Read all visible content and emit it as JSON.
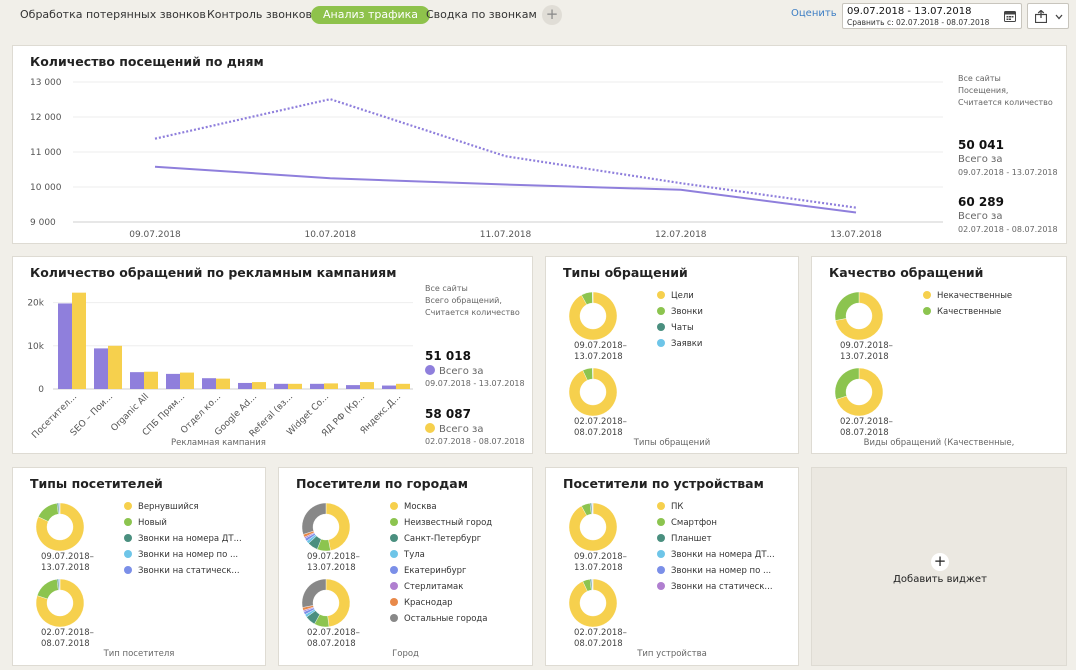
{
  "tabs": [
    {
      "label": "Обработка потерянных звонков"
    },
    {
      "label": "Контроль звонков"
    },
    {
      "label": "Анализ трафика"
    },
    {
      "label": "Сводка по звонкам"
    }
  ],
  "header": {
    "rate_label": "Оценить",
    "date_range": "09.07.2018 - 13.07.2018",
    "compare_range": "Сравнить с: 02.07.2018 - 08.07.2018"
  },
  "colors": {
    "purple": "#8f7fdc",
    "yellow": "#f6d04d",
    "green": "#8cc44f",
    "teal": "#4a8f7f",
    "sky": "#6ec5e8",
    "blue": "#7b8fe8",
    "lilac": "#b07fd0",
    "orange": "#e8894a",
    "gray": "#888888"
  },
  "visits": {
    "title": "Количество посещений по дням",
    "side_note": [
      "Все сайты",
      "Посещения,",
      "Считается количество"
    ],
    "total_current": "50 041",
    "total_current_label": "Всего за",
    "total_current_period": "09.07.2018 - 13.07.2018",
    "total_prev": "60 289",
    "total_prev_label": "Всего за",
    "total_prev_period": "02.07.2018 - 08.07.2018",
    "chart_data": {
      "type": "line",
      "categories": [
        "09.07.2018",
        "10.07.2018",
        "11.07.2018",
        "12.07.2018",
        "13.07.2018"
      ],
      "yticks": [
        "13 000",
        "12 000",
        "11 000",
        "10 000",
        "9 000"
      ],
      "ylim": [
        9000,
        13000
      ],
      "series": [
        {
          "style": "solid",
          "values": [
            10580,
            10250,
            10070,
            9920,
            9270
          ]
        },
        {
          "style": "dotted",
          "values": [
            11380,
            12510,
            10880,
            10110,
            9410
          ]
        }
      ]
    }
  },
  "campaigns": {
    "title": "Количество обращений по рекламным кампаниям",
    "side_note": [
      "Все сайты",
      "Всего обращений,",
      "Считается количество"
    ],
    "total_current": "51 018",
    "total_current_label": "Всего за",
    "total_current_period": "09.07.2018 - 13.07.2018",
    "total_prev": "58 087",
    "total_prev_label": "Всего за",
    "total_prev_period": "02.07.2018 - 08.07.2018",
    "xlabel": "Рекламная кампания",
    "chart_data": {
      "type": "bar",
      "categories": [
        "Посетител...",
        "SEO – Пои...",
        "Organic All",
        "СПБ Прям...",
        "Отдел ко...",
        "Google Ad...",
        "Referal (вз...",
        "Widget Co...",
        "ЯД РФ (Кр...",
        "Яндекс.Д..."
      ],
      "yticks": [
        "20k",
        "10k",
        "0"
      ],
      "ylim": [
        0,
        25000
      ],
      "series": [
        {
          "values": [
            19800,
            9400,
            3900,
            3500,
            2500,
            1400,
            1200,
            1200,
            900,
            800
          ]
        },
        {
          "values": [
            22300,
            10000,
            4000,
            3800,
            2400,
            1600,
            1200,
            1300,
            1600,
            1200
          ]
        }
      ]
    }
  },
  "appeal_types": {
    "title": "Типы обращений",
    "period_current": [
      "09.07.2018–",
      "13.07.2018"
    ],
    "period_prev": [
      "02.07.2018–",
      "08.07.2018"
    ],
    "caption": "Типы обращений",
    "legend": [
      {
        "label": "Цели",
        "color": "#f6d04d"
      },
      {
        "label": "Звонки",
        "color": "#8cc44f"
      },
      {
        "label": "Чаты",
        "color": "#4a8f7f"
      },
      {
        "label": "Заявки",
        "color": "#6ec5e8"
      }
    ],
    "chart_data": [
      {
        "type": "pie",
        "labels": [
          "Цели",
          "Звонки",
          "Чаты",
          "Заявки"
        ],
        "values": [
          92,
          7.5,
          0.3,
          0.2
        ]
      },
      {
        "type": "pie",
        "labels": [
          "Цели",
          "Звонки",
          "Чаты",
          "Заявки"
        ],
        "values": [
          93,
          6.6,
          0.2,
          0.2
        ]
      }
    ]
  },
  "appeal_quality": {
    "title": "Качество обращений",
    "period_current": [
      "09.07.2018–",
      "13.07.2018"
    ],
    "period_prev": [
      "02.07.2018–",
      "08.07.2018"
    ],
    "caption": "Виды обращений (Качественные,",
    "legend": [
      {
        "label": "Некачественные",
        "color": "#f6d04d"
      },
      {
        "label": "Качественные",
        "color": "#8cc44f"
      }
    ],
    "chart_data": [
      {
        "type": "pie",
        "labels": [
          "Некачественные",
          "Качественные"
        ],
        "values": [
          72,
          28
        ]
      },
      {
        "type": "pie",
        "labels": [
          "Некачественные",
          "Качественные"
        ],
        "values": [
          70,
          30
        ]
      }
    ]
  },
  "visitor_types": {
    "title": "Типы посетителей",
    "period_current": [
      "09.07.2018–",
      "13.07.2018"
    ],
    "period_prev": [
      "02.07.2018–",
      "08.07.2018"
    ],
    "caption": "Тип посетителя",
    "legend": [
      {
        "label": "Вернувшийся",
        "color": "#f6d04d"
      },
      {
        "label": "Новый",
        "color": "#8cc44f"
      },
      {
        "label": "Звонки на номера ДТ...",
        "color": "#4a8f7f"
      },
      {
        "label": "Звонки на номер по ...",
        "color": "#6ec5e8"
      },
      {
        "label": "Звонки на статическ...",
        "color": "#7b8fe8"
      }
    ],
    "chart_data": [
      {
        "type": "pie",
        "labels": [
          "Вернувшийся",
          "Новый",
          "Звонки на номера ДТ...",
          "Звонки на номер по ...",
          "Звонки на статическ..."
        ],
        "values": [
          82,
          16,
          1,
          0.5,
          0.5
        ]
      },
      {
        "type": "pie",
        "labels": [
          "Вернувшийся",
          "Новый",
          "Звонки на номера ДТ...",
          "Звонки на номер по ...",
          "Звонки на статическ..."
        ],
        "values": [
          80,
          18,
          1,
          0.5,
          0.5
        ]
      }
    ]
  },
  "city_visitors": {
    "title": "Посетители по городам",
    "period_current": [
      "09.07.2018–",
      "13.07.2018"
    ],
    "period_prev": [
      "02.07.2018–",
      "08.07.2018"
    ],
    "caption": "Город",
    "legend": [
      {
        "label": "Москва",
        "color": "#f6d04d"
      },
      {
        "label": "Неизвестный город",
        "color": "#8cc44f"
      },
      {
        "label": "Санкт-Петербург",
        "color": "#4a8f7f"
      },
      {
        "label": "Тула",
        "color": "#6ec5e8"
      },
      {
        "label": "Екатеринбург",
        "color": "#7b8fe8"
      },
      {
        "label": "Стерлитамак",
        "color": "#b07fd0"
      },
      {
        "label": "Краснодар",
        "color": "#e8894a"
      },
      {
        "label": "Остальные города",
        "color": "#888888"
      }
    ],
    "chart_data": [
      {
        "type": "pie",
        "labels": [
          "Москва",
          "Неизвестный город",
          "Санкт-Петербург",
          "Тула",
          "Екатеринбург",
          "Стерлитамак",
          "Краснодар",
          "Остальные города"
        ],
        "values": [
          47,
          9,
          7,
          2,
          2,
          1,
          2,
          30
        ]
      },
      {
        "type": "pie",
        "labels": [
          "Москва",
          "Неизвестный город",
          "Санкт-Петербург",
          "Тула",
          "Екатеринбург",
          "Стерлитамак",
          "Краснодар",
          "Остальные города"
        ],
        "values": [
          48,
          10,
          7,
          2,
          2,
          1,
          2,
          28
        ]
      }
    ]
  },
  "device_visitors": {
    "title": "Посетители по устройствам",
    "period_current": [
      "09.07.2018–",
      "13.07.2018"
    ],
    "period_prev": [
      "02.07.2018–",
      "08.07.2018"
    ],
    "caption": "Тип устройства",
    "legend": [
      {
        "label": "ПК",
        "color": "#f6d04d"
      },
      {
        "label": "Смартфон",
        "color": "#8cc44f"
      },
      {
        "label": "Планшет",
        "color": "#4a8f7f"
      },
      {
        "label": "Звонки на номера ДТ...",
        "color": "#6ec5e8"
      },
      {
        "label": "Звонки на номер по ...",
        "color": "#7b8fe8"
      },
      {
        "label": "Звонки на статическ...",
        "color": "#b07fd0"
      }
    ],
    "chart_data": [
      {
        "type": "pie",
        "labels": [
          "ПК",
          "Смартфон",
          "Планшет",
          "Звонки на номера ДТ...",
          "Звонки на номер по ...",
          "Звонки на статическ..."
        ],
        "values": [
          92,
          6,
          1,
          0.4,
          0.3,
          0.3
        ]
      },
      {
        "type": "pie",
        "labels": [
          "ПК",
          "Смартфон",
          "Планшет",
          "Звонки на номера ДТ...",
          "Звонки на номер по ...",
          "Звонки на статическ..."
        ],
        "values": [
          93,
          5,
          1,
          0.4,
          0.3,
          0.3
        ]
      }
    ]
  },
  "add_widget": {
    "label": "Добавить виджет"
  }
}
